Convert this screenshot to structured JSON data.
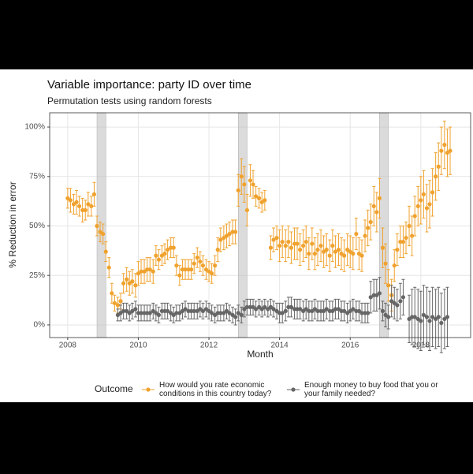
{
  "chart_data": {
    "type": "scatter",
    "title": "Variable importance: party ID over time",
    "subtitle": "Permutation tests using random forests",
    "x_label": "Month",
    "y_label": "% Reduction in error",
    "legend_title": "Outcome",
    "legend_position": "bottom",
    "xlim": [
      2007.49,
      2019.41
    ],
    "ylim": [
      -6.4,
      107.2
    ],
    "xticks": [
      2008,
      2010,
      2012,
      2014,
      2016,
      2018
    ],
    "yticks": [
      {
        "value": 0,
        "label": "0%"
      },
      {
        "value": 25,
        "label": "25%"
      },
      {
        "value": 50,
        "label": "50%"
      },
      {
        "value": 75,
        "label": "75%"
      },
      {
        "value": 100,
        "label": "100%"
      }
    ],
    "grid": true,
    "shaded_periods": [
      [
        2008.83,
        2009.08
      ],
      [
        2012.83,
        2013.08
      ],
      [
        2016.83,
        2017.08
      ]
    ],
    "series": [
      {
        "name": "How would you rate economic conditions in this country today?",
        "color": "#F0A22E",
        "x": [
          2008.0,
          2008.08,
          2008.17,
          2008.25,
          2008.33,
          2008.42,
          2008.5,
          2008.58,
          2008.67,
          2008.75,
          2008.83,
          2008.92,
          2009.0,
          2009.08,
          2009.17,
          2009.25,
          2009.33,
          2009.42,
          2009.5,
          2009.58,
          2009.67,
          2009.75,
          2009.83,
          2009.92,
          2010.0,
          2010.08,
          2010.17,
          2010.25,
          2010.33,
          2010.42,
          2010.5,
          2010.58,
          2010.67,
          2010.75,
          2010.83,
          2010.92,
          2011.0,
          2011.08,
          2011.17,
          2011.25,
          2011.33,
          2011.42,
          2011.5,
          2011.58,
          2011.67,
          2011.75,
          2011.83,
          2011.92,
          2012.0,
          2012.08,
          2012.17,
          2012.25,
          2012.33,
          2012.42,
          2012.5,
          2012.58,
          2012.67,
          2012.75,
          2012.83,
          2012.92,
          2013.0,
          2013.08,
          2013.17,
          2013.25,
          2013.33,
          2013.42,
          2013.5,
          2013.58,
          2013.67,
          2013.75,
          2013.83,
          2013.92,
          2014.0,
          2014.08,
          2014.17,
          2014.25,
          2014.33,
          2014.42,
          2014.5,
          2014.58,
          2014.67,
          2014.75,
          2014.83,
          2014.92,
          2015.0,
          2015.08,
          2015.17,
          2015.25,
          2015.33,
          2015.42,
          2015.5,
          2015.58,
          2015.67,
          2015.75,
          2015.83,
          2015.92,
          2016.0,
          2016.08,
          2016.17,
          2016.25,
          2016.33,
          2016.42,
          2016.5,
          2016.58,
          2016.67,
          2016.75,
          2016.83,
          2016.92,
          2017.0,
          2017.08,
          2017.17,
          2017.25,
          2017.33,
          2017.42,
          2017.5,
          2017.58,
          2017.67,
          2017.75,
          2017.83,
          2017.92,
          2018.0,
          2018.08,
          2018.17,
          2018.25,
          2018.33,
          2018.42,
          2018.5,
          2018.58,
          2018.67,
          2018.75,
          2018.83
        ],
        "values": [
          64,
          63,
          61,
          62,
          60,
          58,
          58,
          61,
          60,
          66,
          50,
          47,
          46,
          37,
          29,
          16,
          11,
          10,
          12,
          21,
          23,
          21,
          22,
          20,
          26,
          27,
          27,
          28,
          28,
          27,
          35,
          33,
          35,
          36,
          38,
          39,
          39,
          30,
          25,
          28,
          28,
          28,
          28,
          31,
          34,
          32,
          30,
          28,
          27,
          26,
          30,
          38,
          43,
          44,
          45,
          46,
          47,
          47,
          68,
          75,
          71,
          58,
          73,
          71,
          65,
          64,
          62,
          63,
          null,
          39,
          43,
          44,
          40,
          42,
          40,
          42,
          39,
          41,
          41,
          38,
          40,
          42,
          36,
          41,
          36,
          38,
          40,
          37,
          38,
          35,
          40,
          37,
          38,
          36,
          35,
          38,
          37,
          36,
          46,
          36,
          35,
          45,
          49,
          52,
          60,
          57,
          64,
          39,
          31,
          20,
          15,
          30,
          38,
          42,
          42,
          44,
          50,
          45,
          55,
          60,
          63,
          66,
          59,
          61,
          67,
          75,
          80,
          88,
          91,
          87,
          88
        ],
        "errors": [
          5,
          6,
          5,
          6,
          5,
          6,
          5,
          6,
          5,
          6,
          5,
          5,
          5,
          5,
          5,
          5,
          4,
          4,
          4,
          5,
          6,
          6,
          6,
          6,
          6,
          6,
          6,
          6,
          6,
          6,
          5,
          5,
          5,
          5,
          5,
          5,
          5,
          5,
          5,
          5,
          5,
          5,
          5,
          5,
          5,
          5,
          5,
          5,
          5,
          5,
          5,
          6,
          6,
          6,
          6,
          6,
          6,
          6,
          8,
          9,
          9,
          8,
          8,
          7,
          5,
          5,
          5,
          5,
          null,
          6,
          6,
          6,
          8,
          8,
          8,
          8,
          8,
          8,
          8,
          8,
          8,
          8,
          8,
          8,
          8,
          8,
          8,
          8,
          8,
          8,
          8,
          8,
          8,
          8,
          8,
          8,
          8,
          8,
          8,
          8,
          8,
          8,
          9,
          9,
          10,
          10,
          10,
          10,
          10,
          8,
          8,
          8,
          8,
          8,
          8,
          8,
          10,
          10,
          10,
          10,
          12,
          12,
          12,
          12,
          12,
          12,
          12,
          12,
          12,
          12,
          12
        ]
      },
      {
        "name": "Enough money to buy food that you or your family needed?",
        "color": "#666666",
        "x": [
          2009.42,
          2009.5,
          2009.58,
          2009.67,
          2009.75,
          2009.83,
          2009.92,
          2010.0,
          2010.08,
          2010.17,
          2010.25,
          2010.33,
          2010.42,
          2010.5,
          2010.58,
          2010.67,
          2010.75,
          2010.83,
          2010.92,
          2011.0,
          2011.08,
          2011.17,
          2011.25,
          2011.33,
          2011.42,
          2011.5,
          2011.58,
          2011.67,
          2011.75,
          2011.83,
          2011.92,
          2012.0,
          2012.08,
          2012.17,
          2012.25,
          2012.33,
          2012.42,
          2012.5,
          2012.58,
          2012.67,
          2012.75,
          2012.83,
          2012.92,
          2013.0,
          2013.08,
          2013.17,
          2013.25,
          2013.33,
          2013.42,
          2013.5,
          2013.58,
          2013.67,
          2013.75,
          2013.83,
          2013.92,
          2014.0,
          2014.08,
          2014.17,
          2014.25,
          2014.33,
          2014.42,
          2014.5,
          2014.58,
          2014.67,
          2014.75,
          2014.83,
          2014.92,
          2015.0,
          2015.08,
          2015.17,
          2015.25,
          2015.33,
          2015.42,
          2015.5,
          2015.58,
          2015.67,
          2015.75,
          2015.83,
          2015.92,
          2016.0,
          2016.08,
          2016.17,
          2016.25,
          2016.33,
          2016.42,
          2016.5,
          2016.58,
          2016.67,
          2016.75,
          2016.83,
          2016.92,
          2017.0,
          2017.08,
          2017.17,
          2017.25,
          2017.33,
          2017.42,
          2017.5,
          2017.58,
          2017.67,
          2017.75,
          2017.83,
          2017.92,
          2018.0,
          2018.08,
          2018.17,
          2018.25,
          2018.33,
          2018.42,
          2018.5,
          2018.58,
          2018.67,
          2018.75
        ],
        "values": [
          5,
          6,
          7,
          7,
          6,
          7,
          8,
          6,
          6,
          6,
          6,
          6,
          7,
          6,
          5,
          7,
          7,
          7,
          6,
          5,
          6,
          6,
          7,
          8,
          7,
          7,
          7,
          7,
          8,
          7,
          8,
          7,
          6,
          5,
          6,
          6,
          6,
          7,
          6,
          5,
          4,
          6,
          5,
          8,
          9,
          9,
          9,
          8,
          9,
          8,
          9,
          8,
          9,
          8,
          7,
          6,
          6,
          7,
          9,
          9,
          8,
          8,
          8,
          7,
          8,
          7,
          7,
          8,
          7,
          7,
          7,
          8,
          7,
          7,
          8,
          8,
          7,
          7,
          6,
          7,
          8,
          7,
          7,
          6,
          6,
          6,
          14,
          15,
          15,
          16,
          7,
          5,
          4,
          12,
          11,
          10,
          12,
          14,
          null,
          3,
          4,
          4,
          3,
          2,
          5,
          4,
          2,
          4,
          3,
          4,
          1,
          3,
          4
        ],
        "errors": [
          3,
          4,
          4,
          4,
          4,
          4,
          4,
          4,
          4,
          4,
          4,
          4,
          4,
          4,
          4,
          4,
          4,
          4,
          4,
          4,
          4,
          4,
          4,
          4,
          4,
          4,
          4,
          4,
          4,
          4,
          4,
          4,
          4,
          4,
          4,
          4,
          4,
          4,
          4,
          4,
          4,
          4,
          4,
          4,
          4,
          4,
          4,
          4,
          4,
          4,
          4,
          4,
          4,
          4,
          4,
          5,
          5,
          5,
          5,
          5,
          5,
          5,
          5,
          5,
          5,
          5,
          5,
          5,
          5,
          5,
          5,
          5,
          5,
          5,
          5,
          5,
          5,
          5,
          5,
          5,
          5,
          5,
          5,
          5,
          5,
          5,
          8,
          8,
          8,
          8,
          5,
          6,
          6,
          8,
          8,
          8,
          9,
          9,
          null,
          12,
          14,
          15,
          15,
          15,
          15,
          15,
          15,
          15,
          15,
          15,
          15,
          15,
          15
        ]
      }
    ]
  }
}
